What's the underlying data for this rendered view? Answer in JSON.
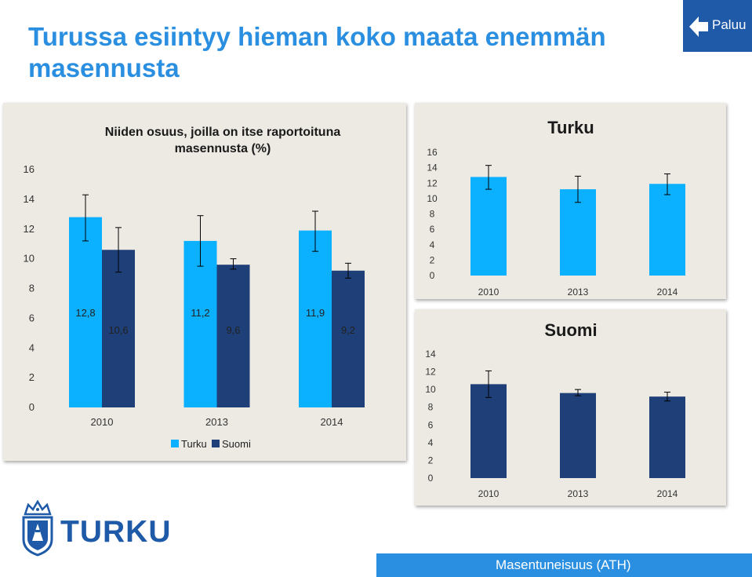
{
  "header": {
    "title": "Turussa esiintyy hieman koko maata enemmän masennusta",
    "back_label": "Paluu"
  },
  "colors": {
    "turku": "#0bb0ff",
    "suomi": "#1e3f78",
    "accent": "#2a8fe0",
    "brand": "#1e5aa8"
  },
  "footer": {
    "label": "Masentuneisuus (ATH)"
  },
  "logo": {
    "text": "TURKU"
  },
  "chart_data": [
    {
      "type": "bar",
      "title": "Niiden osuus, joilla on itse raportoituna masennusta (%)",
      "categories": [
        "2010",
        "2013",
        "2014"
      ],
      "series": [
        {
          "name": "Turku",
          "values": [
            12.8,
            11.2,
            11.9
          ],
          "labels": [
            "12,8",
            "11,2",
            "11,9"
          ],
          "err_low": [
            11.2,
            9.5,
            10.5
          ],
          "err_high": [
            14.3,
            12.9,
            13.2
          ]
        },
        {
          "name": "Suomi",
          "values": [
            10.6,
            9.6,
            9.2
          ],
          "labels": [
            "10,6",
            "9,6",
            "9,2"
          ],
          "err_low": [
            9.1,
            9.3,
            8.7
          ],
          "err_high": [
            12.1,
            10.0,
            9.7
          ]
        }
      ],
      "yticks": [
        "0",
        "2",
        "4",
        "6",
        "8",
        "10",
        "12",
        "14",
        "16"
      ],
      "ylim": [
        0,
        16
      ],
      "legend": "bottom"
    },
    {
      "type": "bar",
      "title": "Turku",
      "categories": [
        "2010",
        "2013",
        "2014"
      ],
      "series": [
        {
          "name": "Turku",
          "values": [
            12.8,
            11.2,
            11.9
          ],
          "err_low": [
            11.2,
            9.5,
            10.5
          ],
          "err_high": [
            14.3,
            12.9,
            13.2
          ]
        }
      ],
      "yticks": [
        "0",
        "2",
        "4",
        "6",
        "8",
        "10",
        "12",
        "14",
        "16"
      ],
      "ylim": [
        0,
        16
      ]
    },
    {
      "type": "bar",
      "title": "Suomi",
      "categories": [
        "2010",
        "2013",
        "2014"
      ],
      "series": [
        {
          "name": "Suomi",
          "values": [
            10.6,
            9.6,
            9.2
          ],
          "err_low": [
            9.1,
            9.3,
            8.7
          ],
          "err_high": [
            12.1,
            10.0,
            9.7
          ]
        }
      ],
      "yticks": [
        "0",
        "2",
        "4",
        "6",
        "8",
        "10",
        "12",
        "14"
      ],
      "ylim": [
        0,
        14
      ]
    }
  ]
}
